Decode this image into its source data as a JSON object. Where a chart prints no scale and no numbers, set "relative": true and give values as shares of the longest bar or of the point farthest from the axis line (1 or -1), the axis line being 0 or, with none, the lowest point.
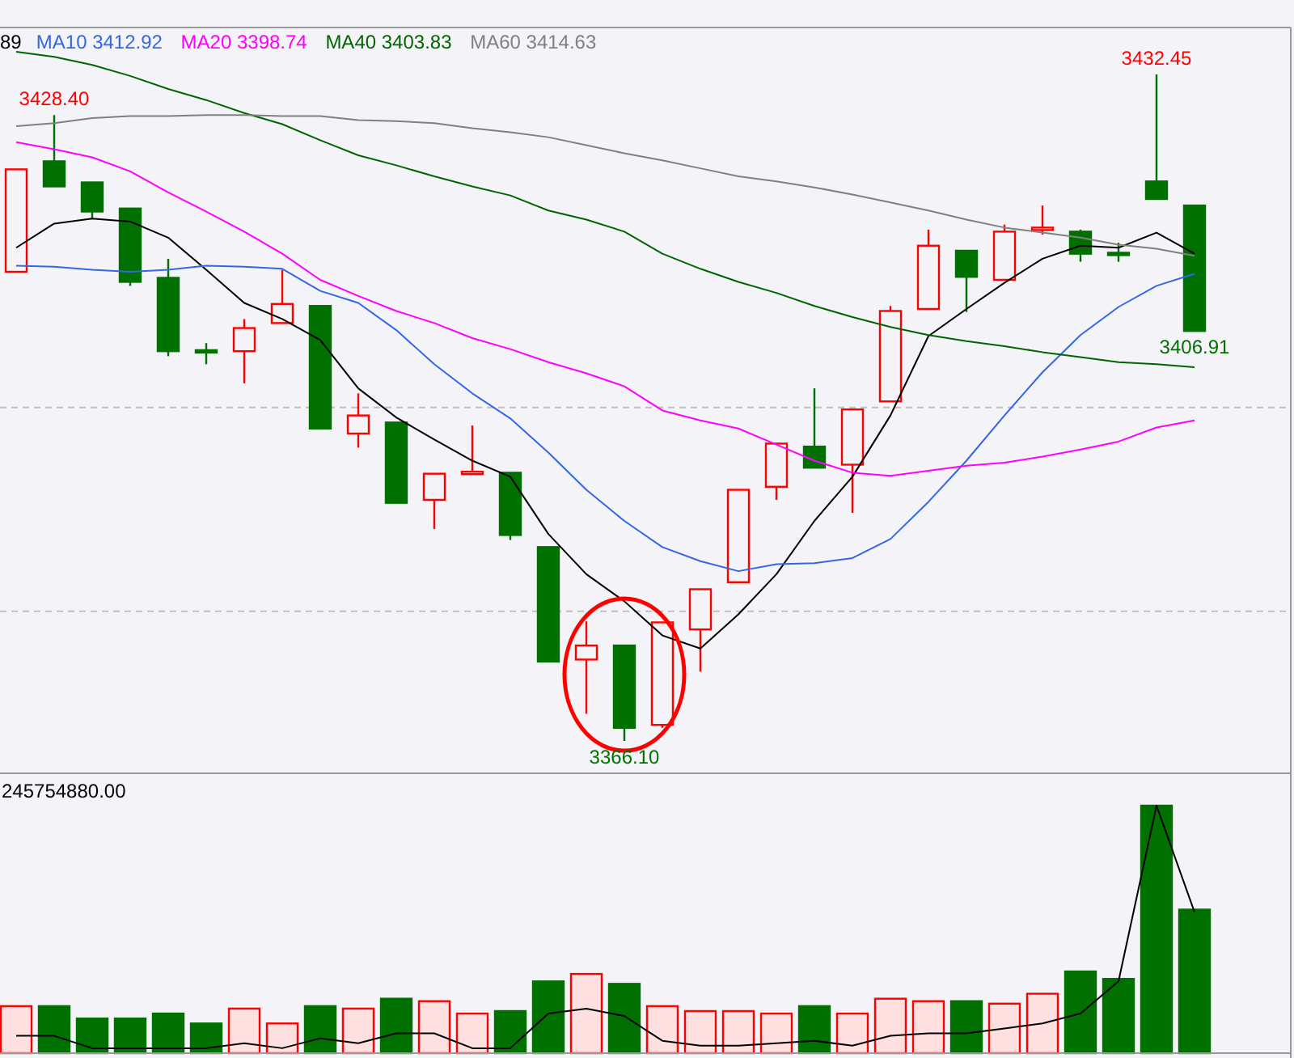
{
  "chart_data": [
    {
      "type": "candlestick",
      "categories": [
        null,
        null,
        null,
        null,
        null,
        null,
        null,
        null,
        null,
        null,
        null,
        null,
        null,
        null,
        null,
        null,
        null,
        null,
        null,
        null,
        null,
        null,
        null,
        null,
        null,
        null,
        null,
        null,
        null,
        null,
        null,
        null
      ],
      "ohlc": [
        [
          3412.8,
          3423.0,
          3412.8,
          3423.0
        ],
        [
          3423.8,
          3428.4,
          3421.3,
          3421.3
        ],
        [
          3421.7,
          3421.7,
          3418.1,
          3418.8
        ],
        [
          3419.1,
          3419.1,
          3411.4,
          3411.8
        ],
        [
          3412.2,
          3414.1,
          3404.4,
          3404.9
        ],
        [
          3405.0,
          3405.7,
          3403.6,
          3404.9
        ],
        [
          3404.9,
          3408.1,
          3401.7,
          3407.2
        ],
        [
          3407.7,
          3413.0,
          3407.7,
          3409.6
        ],
        [
          3409.4,
          3409.4,
          3397.2,
          3397.2
        ],
        [
          3396.7,
          3400.7,
          3395.3,
          3398.5
        ],
        [
          3397.8,
          3397.8,
          3389.8,
          3389.8
        ],
        [
          3390.1,
          3392.7,
          3387.2,
          3392.7
        ],
        [
          3392.8,
          3397.5,
          3392.8,
          3392.9
        ],
        [
          3392.8,
          3392.8,
          3386.1,
          3386.6
        ],
        [
          3385.4,
          3385.4,
          3374.0,
          3374.0
        ],
        [
          3374.2,
          3378.0,
          3368.8,
          3375.6
        ],
        [
          3375.6,
          3375.6,
          3366.1,
          3367.4
        ],
        [
          3367.7,
          3377.9,
          3367.4,
          3377.9
        ],
        [
          3377.2,
          3381.2,
          3373.0,
          3381.2
        ],
        [
          3381.9,
          3391.1,
          3381.9,
          3391.1
        ],
        [
          3391.4,
          3395.7,
          3390.1,
          3395.7
        ],
        [
          3395.4,
          3401.2,
          3393.3,
          3393.3
        ],
        [
          3393.6,
          3399.1,
          3388.8,
          3399.1
        ],
        [
          3399.9,
          3409.4,
          3399.9,
          3408.9
        ],
        [
          3409.1,
          3417.0,
          3409.1,
          3415.4
        ],
        [
          3414.9,
          3414.9,
          3408.8,
          3412.3
        ],
        [
          3412.0,
          3417.5,
          3412.0,
          3416.8
        ],
        [
          3417.0,
          3419.4,
          3416.5,
          3417.2
        ],
        [
          3416.8,
          3417.0,
          3413.8,
          3414.6
        ],
        [
          3414.7,
          3415.7,
          3413.8,
          3414.6
        ],
        [
          3421.8,
          3432.45,
          3420.05,
          3420.05
        ],
        [
          3419.4,
          3419.4,
          3406.91,
          3406.91
        ]
      ],
      "colors": [
        "#ff0000",
        "#007000",
        "#007000",
        "#007000",
        "#007000",
        "#007000",
        "#ff0000",
        "#ff0000",
        "#007000",
        "#ff0000",
        "#007000",
        "#ff0000",
        "#ff0000",
        "#007000",
        "#007000",
        "#ff0000",
        "#007000",
        "#ff0000",
        "#ff0000",
        "#ff0000",
        "#ff0000",
        "#007000",
        "#ff0000",
        "#ff0000",
        "#ff0000",
        "#007000",
        "#ff0000",
        "#ff0000",
        "#007000",
        "#007000",
        "#007000",
        "#007000"
      ],
      "series": [
        {
          "type": "line",
          "name": "89",
          "color": "#000000",
          "values": [
            3415.2,
            3417.6,
            3418.1,
            3417.8,
            3416.2,
            3413.0,
            3409.7,
            3408.1,
            3406.0,
            3401.2,
            3398.3,
            3396.1,
            3394.0,
            3392.4,
            3386.7,
            3382.7,
            3380.0,
            3376.6,
            3375.3,
            3378.7,
            3382.7,
            3388.0,
            3392.4,
            3398.5,
            3406.4,
            3409.1,
            3411.7,
            3414.1,
            3415.4,
            3415.2,
            3416.7,
            3414.6
          ]
        },
        {
          "type": "line",
          "name": "MA10 3412.92",
          "color": "#3366e6",
          "values": [
            3413.4,
            3413.3,
            3413.0,
            3412.8,
            3413.0,
            3413.4,
            3413.3,
            3413.1,
            3410.9,
            3409.7,
            3407.0,
            3403.6,
            3400.7,
            3398.2,
            3394.8,
            3391.1,
            3388.0,
            3385.4,
            3384.0,
            3383.0,
            3383.7,
            3383.8,
            3384.3,
            3386.2,
            3389.9,
            3394.0,
            3398.5,
            3402.8,
            3406.5,
            3409.3,
            3411.4,
            3412.6
          ]
        },
        {
          "type": "line",
          "name": "MA20 3398.74",
          "color": "#ff00ff",
          "values": [
            3425.7,
            3425.0,
            3424.2,
            3422.8,
            3420.7,
            3418.8,
            3416.8,
            3414.6,
            3412.0,
            3410.4,
            3408.9,
            3407.7,
            3406.2,
            3405.1,
            3403.8,
            3402.7,
            3401.4,
            3399.0,
            3398.0,
            3397.2,
            3395.6,
            3394.0,
            3392.8,
            3392.5,
            3393.0,
            3393.5,
            3393.8,
            3394.4,
            3395.1,
            3395.9,
            3397.3,
            3398.0
          ]
        },
        {
          "type": "line",
          "name": "MA40 3403.83",
          "color": "#006400",
          "values": [
            3434.7,
            3434.2,
            3433.4,
            3432.3,
            3431.0,
            3429.9,
            3428.6,
            3427.5,
            3425.9,
            3424.4,
            3423.4,
            3422.3,
            3421.3,
            3420.4,
            3418.9,
            3418.0,
            3416.8,
            3414.6,
            3413.1,
            3411.8,
            3410.7,
            3409.4,
            3408.3,
            3407.3,
            3406.5,
            3405.9,
            3405.4,
            3404.8,
            3404.3,
            3403.8,
            3403.6,
            3403.3
          ]
        },
        {
          "type": "line",
          "name": "MA60 3414.63",
          "color": "#808080",
          "values": [
            3427.3,
            3427.6,
            3428.1,
            3428.3,
            3428.3,
            3428.4,
            3428.4,
            3428.3,
            3428.3,
            3427.9,
            3427.8,
            3427.6,
            3427.1,
            3426.7,
            3426.2,
            3425.4,
            3424.6,
            3423.9,
            3423.1,
            3422.3,
            3421.8,
            3421.2,
            3420.5,
            3419.7,
            3418.9,
            3418.0,
            3417.2,
            3416.7,
            3416.2,
            3415.5,
            3415.1,
            3414.4
          ]
        }
      ],
      "annotations": [
        {
          "text": "3428.40",
          "y": 3428.4
        },
        {
          "text": "3432.45",
          "y": 3432.45
        },
        {
          "text": "3406.91",
          "y": 3406.91
        },
        {
          "text": "3366.10",
          "y": 3366.1
        }
      ],
      "yticks": [
        {
          "value": 3379.0,
          "label": null
        },
        {
          "value": 3399.3,
          "label": null
        }
      ],
      "grid": true,
      "legend": "top left"
    },
    {
      "type": "bar",
      "relative": true,
      "categories": [
        null,
        null,
        null,
        null,
        null,
        null,
        null,
        null,
        null,
        null,
        null,
        null,
        null,
        null,
        null,
        null,
        null,
        null,
        null,
        null,
        null,
        null,
        null,
        null,
        null,
        null,
        null,
        null,
        null,
        null,
        null,
        null
      ],
      "values": [
        0.19,
        0.19,
        0.14,
        0.14,
        0.16,
        0.12,
        0.18,
        0.12,
        0.19,
        0.18,
        0.22,
        0.21,
        0.16,
        0.17,
        0.29,
        0.32,
        0.28,
        0.19,
        0.17,
        0.17,
        0.16,
        0.19,
        0.16,
        0.22,
        0.21,
        0.21,
        0.2,
        0.24,
        0.33,
        0.3,
        1,
        0.58
      ],
      "colors": [
        "#ff0000",
        "#007000",
        "#007000",
        "#007000",
        "#007000",
        "#007000",
        "#ff0000",
        "#ff0000",
        "#007000",
        "#ff0000",
        "#007000",
        "#ff0000",
        "#ff0000",
        "#007000",
        "#007000",
        "#ff0000",
        "#007000",
        "#ff0000",
        "#ff0000",
        "#ff0000",
        "#ff0000",
        "#007000",
        "#ff0000",
        "#ff0000",
        "#ff0000",
        "#007000",
        "#ff0000",
        "#ff0000",
        "#007000",
        "#007000",
        "#007000",
        "#007000"
      ],
      "annotations": [
        "245754880.00"
      ]
    },
    {
      "type": "line",
      "relative": true,
      "categories": [
        null,
        null,
        null,
        null,
        null,
        null,
        null,
        null,
        null,
        null,
        null,
        null,
        null,
        null,
        null,
        null,
        null,
        null,
        null,
        null,
        null,
        null,
        null,
        null,
        null,
        null,
        null,
        null,
        null,
        null,
        null,
        null
      ],
      "series": [
        {
          "color": "#000000",
          "values": [
            0.07,
            0.07,
            0.02,
            0.02,
            0.02,
            0.02,
            0.04,
            0.02,
            0.06,
            0.04,
            0.08,
            0.08,
            0.02,
            0.02,
            0.16,
            0.18,
            0.15,
            0.05,
            0.03,
            0.03,
            0.04,
            0.05,
            0.03,
            0.07,
            0.08,
            0.08,
            0.1,
            0.12,
            0.16,
            0.29,
            1,
            0.57
          ]
        }
      ]
    }
  ]
}
